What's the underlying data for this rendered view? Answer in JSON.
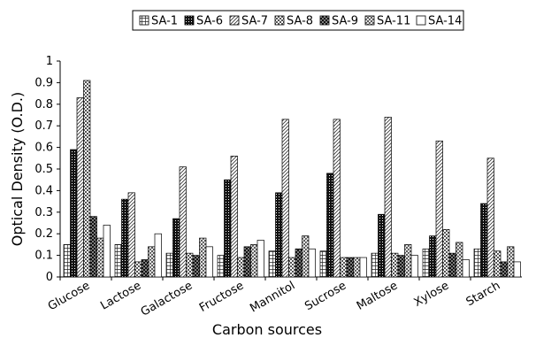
{
  "chart_data": {
    "type": "bar",
    "title": "",
    "xlabel": "Carbon sources",
    "ylabel": "Optical Density (O.D.)",
    "ylim": [
      0,
      1
    ],
    "yticks": [
      "0",
      "0.1",
      "0.2",
      "0.3",
      "0.4",
      "0.5",
      "0.6",
      "0.7",
      "0.8",
      "0.9",
      "1"
    ],
    "legend_position": "top-center",
    "grid": false,
    "categories": [
      "Glucose",
      "Lactose",
      "Galactose",
      "Fructose",
      "Mannitol",
      "Sucrose",
      "Maltose",
      "Xylose",
      "Starch"
    ],
    "series": [
      {
        "name": "SA-1",
        "pattern": "hgrid",
        "values": [
          0.15,
          0.15,
          0.11,
          0.1,
          0.12,
          0.12,
          0.11,
          0.13,
          0.13
        ]
      },
      {
        "name": "SA-6",
        "pattern": "checker-dark",
        "values": [
          0.59,
          0.36,
          0.27,
          0.45,
          0.39,
          0.48,
          0.29,
          0.19,
          0.34
        ]
      },
      {
        "name": "SA-7",
        "pattern": "diag-light",
        "values": [
          0.83,
          0.39,
          0.51,
          0.56,
          0.73,
          0.73,
          0.74,
          0.63,
          0.55
        ]
      },
      {
        "name": "SA-8",
        "pattern": "checker-light",
        "values": [
          0.91,
          0.07,
          0.11,
          0.09,
          0.09,
          0.09,
          0.11,
          0.22,
          0.12
        ]
      },
      {
        "name": "SA-9",
        "pattern": "dots-dark",
        "values": [
          0.28,
          0.08,
          0.1,
          0.14,
          0.13,
          0.09,
          0.1,
          0.11,
          0.07
        ]
      },
      {
        "name": "SA-11",
        "pattern": "crosshatch",
        "values": [
          0.18,
          0.14,
          0.18,
          0.15,
          0.19,
          0.09,
          0.15,
          0.16,
          0.14
        ]
      },
      {
        "name": "SA-14",
        "pattern": "plain",
        "values": [
          0.24,
          0.2,
          0.14,
          0.17,
          0.13,
          0.09,
          0.1,
          0.08,
          0.07
        ]
      }
    ]
  }
}
